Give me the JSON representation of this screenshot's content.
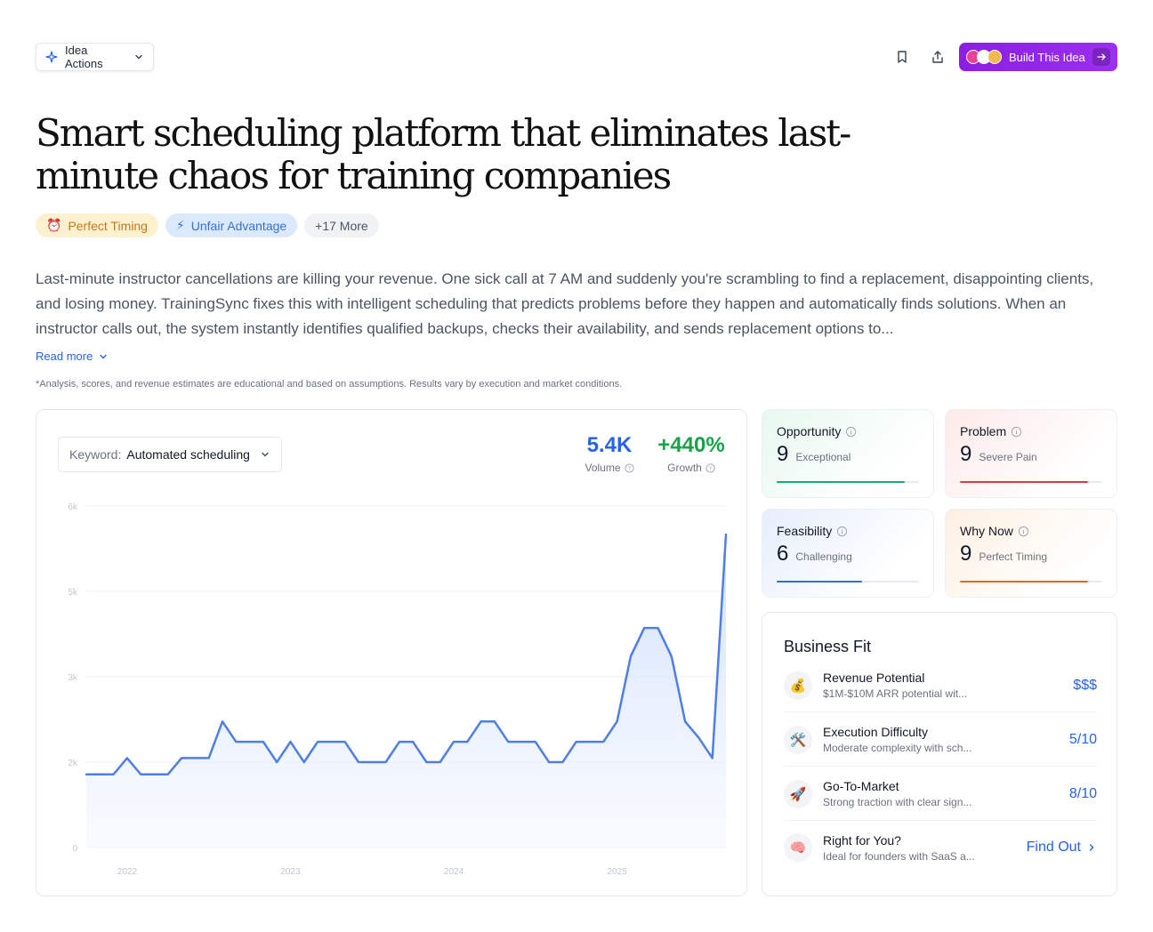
{
  "header": {
    "idea_actions_label": "Idea Actions",
    "build_label": "Build This Idea",
    "accent": "#9128ea"
  },
  "title": "Smart scheduling platform that eliminates last-minute chaos for training companies",
  "tags": [
    {
      "icon": "⏰",
      "label": "Perfect Timing"
    },
    {
      "icon": "⚡",
      "label": "Unfair Advantage"
    },
    {
      "label": "+17 More"
    }
  ],
  "description": "Last-minute instructor cancellations are killing your revenue. One sick call at 7 AM and suddenly you're scrambling to find a replacement, disappointing clients, and losing money. TrainingSync fixes this with intelligent scheduling that predicts problems before they happen and automatically finds solutions. When an instructor calls out, the system instantly identifies qualified backups, checks their availability, and sends replacement options to...",
  "read_more": "Read more",
  "disclaimer": "*Analysis, scores, and revenue estimates are educational and based on assumptions. Results vary by execution and market conditions.",
  "keyword": {
    "label": "Keyword:",
    "value": "Automated scheduling"
  },
  "metrics": {
    "volume": {
      "value": "5.4K",
      "label": "Volume",
      "color": "#2563eb"
    },
    "growth": {
      "value": "+440%",
      "label": "Growth",
      "color": "#16a34a"
    }
  },
  "chart_data": {
    "type": "area",
    "y_ticks": [
      "0",
      "2k",
      "3k",
      "5k",
      "6k"
    ],
    "x_ticks": [
      "2022",
      "2023",
      "2024",
      "2025"
    ],
    "x_tick_positions": [
      3,
      15,
      27,
      39
    ],
    "values": [
      1800,
      1800,
      1800,
      2200,
      1800,
      1800,
      1800,
      2200,
      2200,
      2200,
      3100,
      2600,
      2600,
      2600,
      2100,
      2600,
      2100,
      2600,
      2600,
      2600,
      2100,
      2100,
      2100,
      2600,
      2600,
      2100,
      2100,
      2600,
      2600,
      3100,
      3100,
      2600,
      2600,
      2600,
      2100,
      2100,
      2600,
      2600,
      2600,
      3100,
      4700,
      5400,
      5400,
      4700,
      3100,
      2700,
      2200,
      7700
    ],
    "ylim": [
      0,
      8400
    ],
    "line_color": "#4f7fe6"
  },
  "scores": [
    {
      "name": "Opportunity",
      "value": "9",
      "label": "Exceptional",
      "fill": 0.9,
      "color": "#18a97c",
      "bg": "#e7f8f0"
    },
    {
      "name": "Problem",
      "value": "9",
      "label": "Severe Pain",
      "fill": 0.9,
      "color": "#dc3b3b",
      "bg": "#fde9e9"
    },
    {
      "name": "Feasibility",
      "value": "6",
      "label": "Challenging",
      "fill": 0.6,
      "color": "#2f6fd7",
      "bg": "#e6eefc"
    },
    {
      "name": "Why Now",
      "value": "9",
      "label": "Perfect Timing",
      "fill": 0.9,
      "color": "#e2661f",
      "bg": "#fdf0e1"
    }
  ],
  "business_fit": {
    "title": "Business Fit",
    "rows": [
      {
        "icon": "💰",
        "title": "Revenue Potential",
        "sub": "$1M-$10M ARR potential wit...",
        "value": "$$$"
      },
      {
        "icon": "🛠️",
        "title": "Execution Difficulty",
        "sub": "Moderate complexity with sch...",
        "value": "5/10"
      },
      {
        "icon": "🚀",
        "title": "Go-To-Market",
        "sub": "Strong traction with clear sign...",
        "value": "8/10"
      },
      {
        "icon": "🧠",
        "title": "Right for You?",
        "sub": "Ideal for founders with SaaS a...",
        "value": "Find Out"
      }
    ]
  }
}
